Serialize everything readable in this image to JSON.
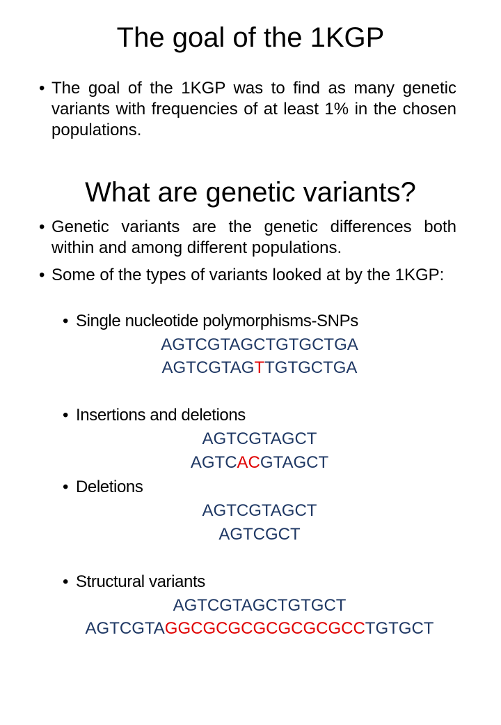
{
  "colors": {
    "sequence": "#1f3864",
    "highlight": "#e00000"
  },
  "section1": {
    "title": "The goal of the 1KGP",
    "bullet": "The goal of the 1KGP was to find as many genetic variants with frequencies of at least 1% in the chosen populations."
  },
  "section2": {
    "title": "What are genetic variants?",
    "bullet1": "Genetic variants are the genetic differences both within and among different populations.",
    "bullet2": "Some of the types of variants looked at by the 1KGP:"
  },
  "snp": {
    "label": "Single nucleotide polymorphisms-SNPs",
    "seq1": "AGTCGTAGCTGTGCTGA",
    "seq2": {
      "pre": "AGTCGTAG",
      "hl": "T",
      "post": "TGTGCTGA"
    }
  },
  "indel": {
    "label": "Insertions and deletions",
    "seq1": "AGTCGTAGCT",
    "seq2": {
      "pre": "AGTC",
      "hl": "AC",
      "post": "GTAGCT"
    }
  },
  "deletion": {
    "label": "Deletions",
    "seq1": "AGTCGTAGCT",
    "seq2": "AGTCGCT"
  },
  "structural": {
    "label": "Structural variants",
    "seq1": "AGTCGTAGCTGTGCT",
    "seq2": {
      "pre": "AGTCGTA",
      "hl": "GGCGCGCGCGCGCGCC",
      "post": "TGTGCT"
    }
  }
}
